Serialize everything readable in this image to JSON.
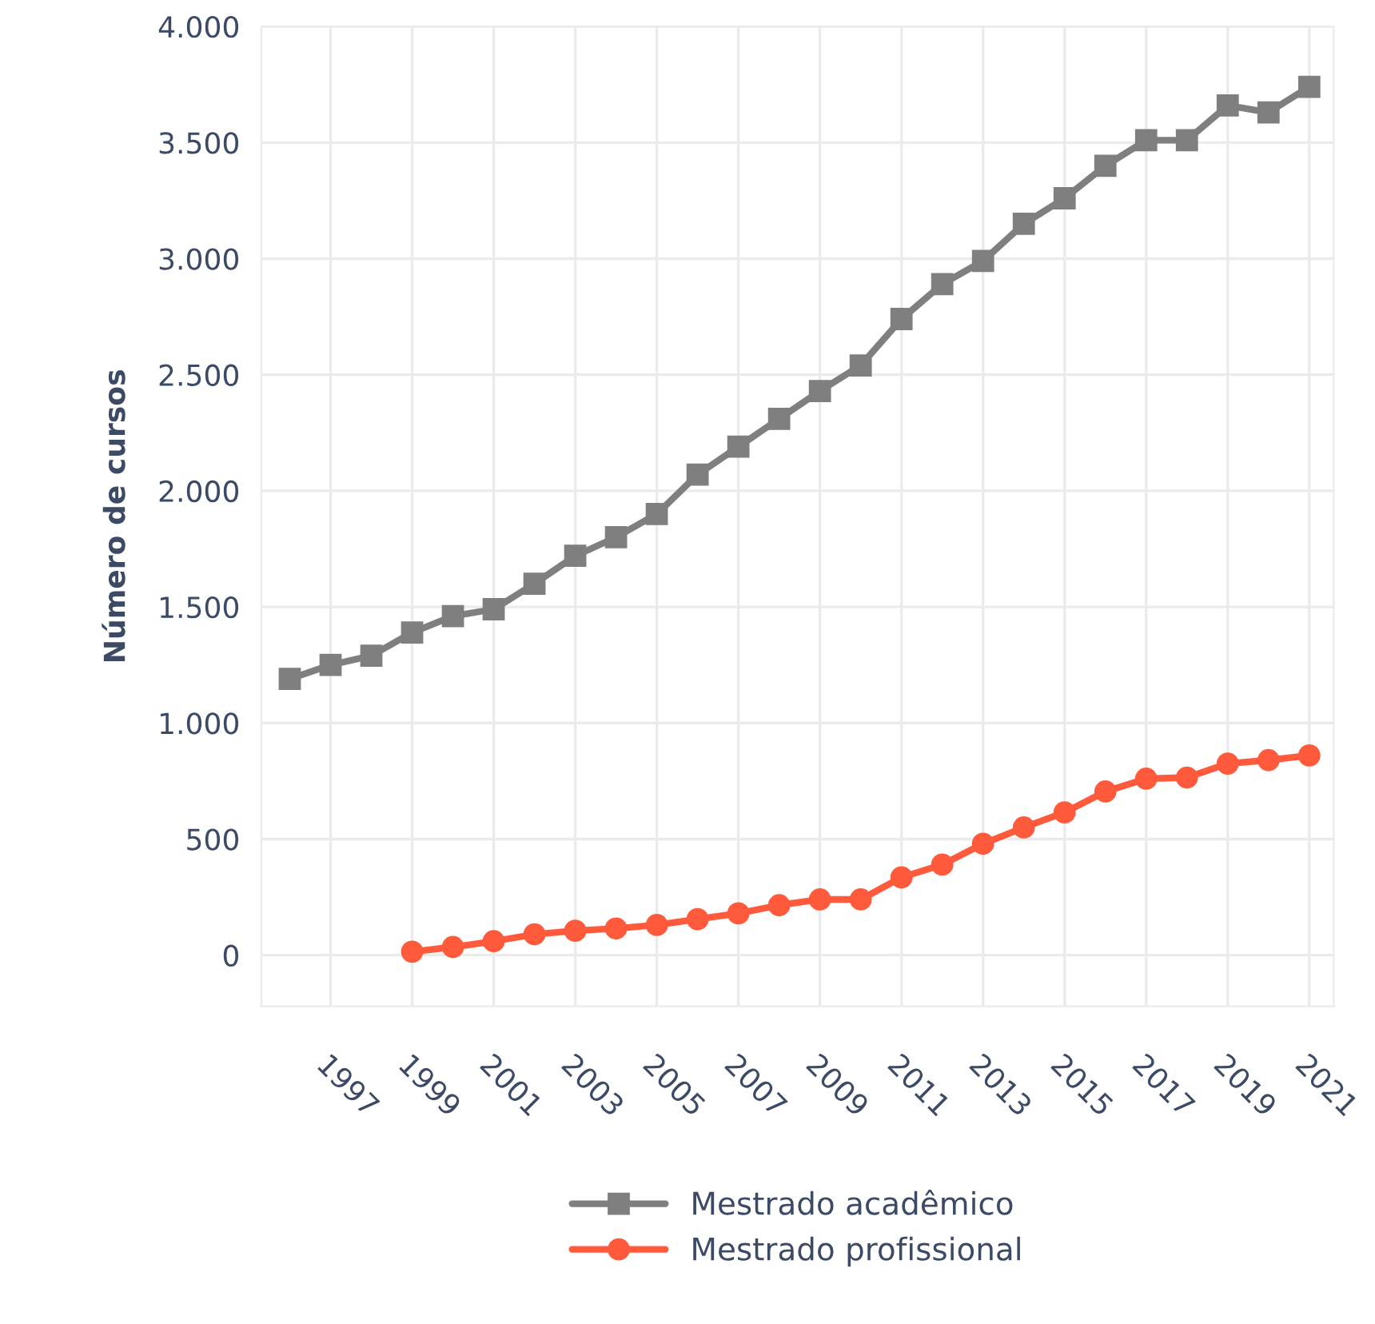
{
  "chart_data": {
    "type": "line",
    "ylabel": "Número de cursos",
    "series": [
      {
        "name": "Mestrado acadêmico",
        "color": "#7f7f7f",
        "marker": "square",
        "x": [
          1996,
          1997,
          1998,
          1999,
          2000,
          2001,
          2002,
          2003,
          2004,
          2005,
          2006,
          2007,
          2008,
          2009,
          2010,
          2011,
          2012,
          2013,
          2014,
          2015,
          2016,
          2017,
          2018,
          2019,
          2020,
          2021
        ],
        "values": [
          1190,
          1250,
          1290,
          1390,
          1460,
          1490,
          1600,
          1720,
          1800,
          1900,
          2070,
          2190,
          2310,
          2430,
          2540,
          2740,
          2890,
          2990,
          3150,
          3260,
          3400,
          3510,
          3510,
          3660,
          3630,
          3740
        ]
      },
      {
        "name": "Mestrado profissional",
        "color": "#ff5a3c",
        "marker": "circle",
        "x": [
          1999,
          2000,
          2001,
          2002,
          2003,
          2004,
          2005,
          2006,
          2007,
          2008,
          2009,
          2010,
          2011,
          2012,
          2013,
          2014,
          2015,
          2016,
          2017,
          2018,
          2019,
          2020,
          2021
        ],
        "values": [
          15,
          35,
          60,
          90,
          105,
          115,
          130,
          155,
          180,
          215,
          240,
          240,
          335,
          390,
          480,
          550,
          615,
          705,
          760,
          765,
          825,
          840,
          860
        ]
      }
    ],
    "xlim": [
      1995.3,
      2021.6
    ],
    "xticks": [
      1997,
      1999,
      2001,
      2003,
      2005,
      2007,
      2009,
      2011,
      2013,
      2015,
      2017,
      2019,
      2021
    ],
    "ylim": [
      -220,
      4000
    ],
    "yticks": [
      {
        "value": 0,
        "label": "0"
      },
      {
        "value": 500,
        "label": "500"
      },
      {
        "value": 1000,
        "label": "1.000"
      },
      {
        "value": 1500,
        "label": "1.500"
      },
      {
        "value": 2000,
        "label": "2.000"
      },
      {
        "value": 2500,
        "label": "2.500"
      },
      {
        "value": 3000,
        "label": "3.000"
      },
      {
        "value": 3500,
        "label": "3.500"
      },
      {
        "value": 4000,
        "label": "4.000"
      }
    ],
    "grid": true,
    "legend": "bottom",
    "line_style": "solid"
  }
}
